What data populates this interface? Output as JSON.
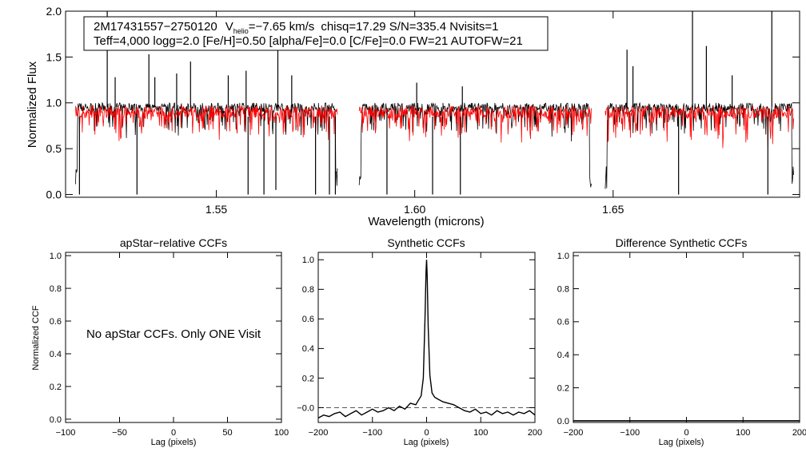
{
  "chart_data": [
    {
      "type": "line",
      "title": "",
      "annotation": {
        "star_id": "2M17431557−2750120",
        "vhelio_prefix": "V",
        "vhelio_sub": "helio",
        "vhelio_value": "=−7.65 km/s",
        "stats": "chisq=17.29  S/N=335.4  Nvisits=1",
        "params": "Teff=4,000 logg=2.0 [Fe/H]=0.50 [alpha/Fe]=0.0 [C/Fe]=0.0 FW=21 AUTOFW=21"
      },
      "xlabel": "Wavelength (microns)",
      "ylabel": "Normalized Flux",
      "xlim": [
        1.512,
        1.697
      ],
      "ylim": [
        -0.03,
        2.0
      ],
      "x_ticks": [
        "1.55",
        "1.60",
        "1.65"
      ],
      "x_tick_values": [
        1.55,
        1.6,
        1.65
      ],
      "y_ticks": [
        "0.0",
        "0.5",
        "1.0",
        "1.5",
        "2.0"
      ],
      "y_tick_values": [
        0.0,
        0.5,
        1.0,
        1.5,
        2.0
      ],
      "chips": [
        [
          1.5145,
          1.5805
        ],
        [
          1.586,
          1.6445
        ],
        [
          1.648,
          1.6955
        ]
      ],
      "series": [
        {
          "color": "#000000",
          "baseline": 0.95,
          "noise": 0.05
        },
        {
          "color": "#ff0000",
          "baseline": 0.9,
          "noise": 0.07
        }
      ],
      "spikes_up": [
        [
          1.5225,
          2.0
        ],
        [
          1.5245,
          1.28
        ],
        [
          1.533,
          1.53
        ],
        [
          1.5345,
          1.28
        ],
        [
          1.54,
          1.32
        ],
        [
          1.5435,
          1.45
        ],
        [
          1.553,
          1.3
        ],
        [
          1.5575,
          1.35
        ],
        [
          1.5655,
          1.62
        ],
        [
          1.569,
          1.3
        ],
        [
          1.6005,
          1.22
        ],
        [
          1.612,
          1.18
        ],
        [
          1.6535,
          1.58
        ],
        [
          1.655,
          1.4
        ],
        [
          1.67,
          2.0
        ],
        [
          1.6735,
          1.62
        ],
        [
          1.68,
          1.3
        ],
        [
          1.69,
          2.0
        ]
      ],
      "spikes_down": [
        [
          1.5155,
          0.0
        ],
        [
          1.53,
          0.0
        ],
        [
          1.558,
          0.0
        ],
        [
          1.562,
          0.0
        ],
        [
          1.565,
          0.05
        ],
        [
          1.575,
          0.0
        ],
        [
          1.5785,
          0.0
        ],
        [
          1.58,
          0.0
        ],
        [
          1.593,
          0.0
        ],
        [
          1.6045,
          0.0
        ],
        [
          1.6115,
          0.0
        ],
        [
          1.6665,
          0.0
        ],
        [
          1.689,
          0.0
        ]
      ]
    },
    {
      "type": "line",
      "title": "apStar−relative CCFs",
      "xlabel": "Lag (pixels)",
      "ylabel": "Normalized CCF",
      "xlim": [
        -100,
        100
      ],
      "ylim": [
        -0.02,
        1.02
      ],
      "x_ticks": [
        "−100",
        "−50",
        "0",
        "50",
        "100"
      ],
      "x_tick_values": [
        -100,
        -50,
        0,
        50,
        100
      ],
      "y_ticks": [
        "0.0",
        "0.2",
        "0.4",
        "0.6",
        "0.8",
        "1.0"
      ],
      "y_tick_values": [
        0.0,
        0.2,
        0.4,
        0.6,
        0.8,
        1.0
      ],
      "message": "No apStar CCFs.  Only ONE Visit",
      "series": []
    },
    {
      "type": "line",
      "title": "Synthetic CCFs",
      "xlabel": "Lag (pixels)",
      "ylabel": "",
      "xlim": [
        -200,
        200
      ],
      "ylim": [
        -0.1,
        1.05
      ],
      "x_ticks": [
        "−200",
        "−100",
        "0",
        "100",
        "200"
      ],
      "x_tick_values": [
        -200,
        -100,
        0,
        100,
        200
      ],
      "y_ticks": [
        "−0.0",
        "0.2",
        "0.4",
        "0.6",
        "0.8",
        "1.0"
      ],
      "y_tick_values": [
        0.0,
        0.2,
        0.4,
        0.6,
        0.8,
        1.0
      ],
      "zero_line": 0.0,
      "series": [
        {
          "color": "#000000",
          "x": [
            -200,
            -190,
            -180,
            -170,
            -160,
            -150,
            -140,
            -130,
            -120,
            -110,
            -100,
            -90,
            -80,
            -70,
            -60,
            -50,
            -40,
            -30,
            -20,
            -15,
            -10,
            -6,
            -3,
            -1,
            0,
            1,
            3,
            6,
            10,
            15,
            20,
            30,
            40,
            50,
            60,
            70,
            80,
            90,
            100,
            110,
            120,
            130,
            140,
            150,
            160,
            170,
            180,
            190,
            200
          ],
          "y": [
            -0.07,
            -0.05,
            -0.06,
            -0.04,
            -0.03,
            -0.06,
            -0.04,
            -0.02,
            -0.05,
            -0.03,
            -0.01,
            -0.03,
            -0.02,
            0.0,
            -0.02,
            0.01,
            -0.01,
            0.03,
            0.02,
            0.05,
            0.08,
            0.2,
            0.6,
            0.92,
            1.0,
            0.9,
            0.55,
            0.22,
            0.1,
            0.07,
            0.06,
            0.04,
            0.03,
            0.02,
            0.0,
            -0.02,
            -0.03,
            -0.01,
            -0.04,
            -0.03,
            -0.05,
            -0.02,
            -0.04,
            -0.03,
            -0.05,
            -0.03,
            -0.04,
            -0.02,
            -0.05
          ]
        }
      ]
    },
    {
      "type": "line",
      "title": "Difference Synthetic CCFs",
      "xlabel": "Lag (pixels)",
      "ylabel": "",
      "xlim": [
        -200,
        200
      ],
      "ylim": [
        -0.01,
        1.02
      ],
      "x_ticks": [
        "−200",
        "−100",
        "0",
        "100",
        "200"
      ],
      "x_tick_values": [
        -200,
        -100,
        0,
        100,
        200
      ],
      "y_ticks": [
        "0.0",
        "0.2",
        "0.4",
        "0.6",
        "0.8",
        "1.0"
      ],
      "y_tick_values": [
        0.0,
        0.2,
        0.4,
        0.6,
        0.8,
        1.0
      ],
      "series": [
        {
          "color": "#000000",
          "x": [
            -200,
            200
          ],
          "y": [
            0.0,
            0.0
          ]
        }
      ]
    }
  ]
}
